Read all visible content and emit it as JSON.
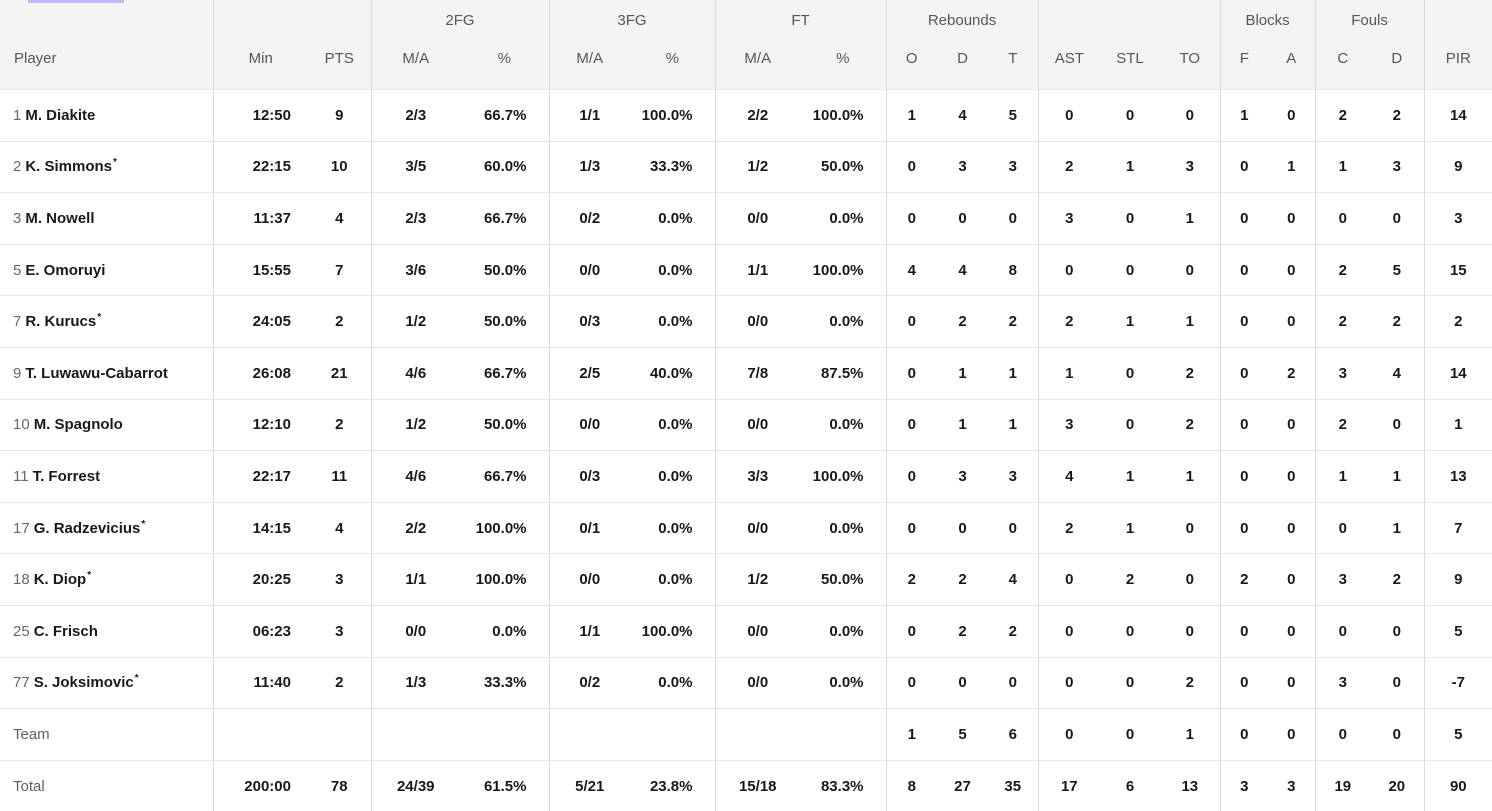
{
  "colors": {
    "accent_top_bar": "#c6b8f0",
    "header_bg": "#f4f4f5",
    "row_border": "#e8e8e9",
    "group_border": "#dadadb",
    "value_text": "#17191c",
    "muted_text": "#5d6167"
  },
  "starter_mark": "*",
  "header": {
    "groups": {
      "fg2": "2FG",
      "fg3": "3FG",
      "ft": "FT",
      "rebounds": "Rebounds",
      "blocks": "Blocks",
      "fouls": "Fouls"
    },
    "cols": {
      "player": "Player",
      "min": "Min",
      "pts": "PTS",
      "ma2": "M/A",
      "pct2": "%",
      "ma3": "M/A",
      "pct3": "%",
      "maft": "M/A",
      "pctft": "%",
      "o": "O",
      "d": "D",
      "t": "T",
      "ast": "AST",
      "stl": "STL",
      "to": "TO",
      "f": "F",
      "a": "A",
      "c": "C",
      "d2": "D",
      "pir": "PIR"
    }
  },
  "rows": [
    {
      "num": "1",
      "name": "M. Diakite",
      "starter": false,
      "stats": [
        "12:50",
        "9",
        "2/3",
        "66.7%",
        "1/1",
        "100.0%",
        "2/2",
        "100.0%",
        "1",
        "4",
        "5",
        "0",
        "0",
        "0",
        "1",
        "0",
        "2",
        "2",
        "14"
      ]
    },
    {
      "num": "2",
      "name": "K. Simmons",
      "starter": true,
      "stats": [
        "22:15",
        "10",
        "3/5",
        "60.0%",
        "1/3",
        "33.3%",
        "1/2",
        "50.0%",
        "0",
        "3",
        "3",
        "2",
        "1",
        "3",
        "0",
        "1",
        "1",
        "3",
        "9"
      ]
    },
    {
      "num": "3",
      "name": "M. Nowell",
      "starter": false,
      "stats": [
        "11:37",
        "4",
        "2/3",
        "66.7%",
        "0/2",
        "0.0%",
        "0/0",
        "0.0%",
        "0",
        "0",
        "0",
        "3",
        "0",
        "1",
        "0",
        "0",
        "0",
        "0",
        "3"
      ]
    },
    {
      "num": "5",
      "name": "E. Omoruyi",
      "starter": false,
      "stats": [
        "15:55",
        "7",
        "3/6",
        "50.0%",
        "0/0",
        "0.0%",
        "1/1",
        "100.0%",
        "4",
        "4",
        "8",
        "0",
        "0",
        "0",
        "0",
        "0",
        "2",
        "5",
        "15"
      ]
    },
    {
      "num": "7",
      "name": "R. Kurucs",
      "starter": true,
      "stats": [
        "24:05",
        "2",
        "1/2",
        "50.0%",
        "0/3",
        "0.0%",
        "0/0",
        "0.0%",
        "0",
        "2",
        "2",
        "2",
        "1",
        "1",
        "0",
        "0",
        "2",
        "2",
        "2"
      ]
    },
    {
      "num": "9",
      "name": "T. Luwawu-Cabarrot",
      "starter": false,
      "stats": [
        "26:08",
        "21",
        "4/6",
        "66.7%",
        "2/5",
        "40.0%",
        "7/8",
        "87.5%",
        "0",
        "1",
        "1",
        "1",
        "0",
        "2",
        "0",
        "2",
        "3",
        "4",
        "14"
      ]
    },
    {
      "num": "10",
      "name": "M. Spagnolo",
      "starter": false,
      "stats": [
        "12:10",
        "2",
        "1/2",
        "50.0%",
        "0/0",
        "0.0%",
        "0/0",
        "0.0%",
        "0",
        "1",
        "1",
        "3",
        "0",
        "2",
        "0",
        "0",
        "2",
        "0",
        "1"
      ]
    },
    {
      "num": "11",
      "name": "T. Forrest",
      "starter": false,
      "stats": [
        "22:17",
        "11",
        "4/6",
        "66.7%",
        "0/3",
        "0.0%",
        "3/3",
        "100.0%",
        "0",
        "3",
        "3",
        "4",
        "1",
        "1",
        "0",
        "0",
        "1",
        "1",
        "13"
      ]
    },
    {
      "num": "17",
      "name": "G. Radzevicius",
      "starter": true,
      "stats": [
        "14:15",
        "4",
        "2/2",
        "100.0%",
        "0/1",
        "0.0%",
        "0/0",
        "0.0%",
        "0",
        "0",
        "0",
        "2",
        "1",
        "0",
        "0",
        "0",
        "0",
        "1",
        "7"
      ]
    },
    {
      "num": "18",
      "name": "K. Diop",
      "starter": true,
      "stats": [
        "20:25",
        "3",
        "1/1",
        "100.0%",
        "0/0",
        "0.0%",
        "1/2",
        "50.0%",
        "2",
        "2",
        "4",
        "0",
        "2",
        "0",
        "2",
        "0",
        "3",
        "2",
        "9"
      ]
    },
    {
      "num": "25",
      "name": "C. Frisch",
      "starter": false,
      "stats": [
        "06:23",
        "3",
        "0/0",
        "0.0%",
        "1/1",
        "100.0%",
        "0/0",
        "0.0%",
        "0",
        "2",
        "2",
        "0",
        "0",
        "0",
        "0",
        "0",
        "0",
        "0",
        "5"
      ]
    },
    {
      "num": "77",
      "name": "S. Joksimovic",
      "starter": true,
      "stats": [
        "11:40",
        "2",
        "1/3",
        "33.3%",
        "0/2",
        "0.0%",
        "0/0",
        "0.0%",
        "0",
        "0",
        "0",
        "0",
        "0",
        "2",
        "0",
        "0",
        "3",
        "0",
        "-7"
      ]
    }
  ],
  "team_row": {
    "label": "Team",
    "stats": [
      "",
      "",
      "",
      "",
      "",
      "",
      "",
      "",
      "1",
      "5",
      "6",
      "0",
      "0",
      "1",
      "0",
      "0",
      "0",
      "0",
      "5"
    ]
  },
  "total_row": {
    "label": "Total",
    "stats": [
      "200:00",
      "78",
      "24/39",
      "61.5%",
      "5/21",
      "23.8%",
      "15/18",
      "83.3%",
      "8",
      "27",
      "35",
      "17",
      "6",
      "13",
      "3",
      "3",
      "19",
      "20",
      "90"
    ]
  }
}
